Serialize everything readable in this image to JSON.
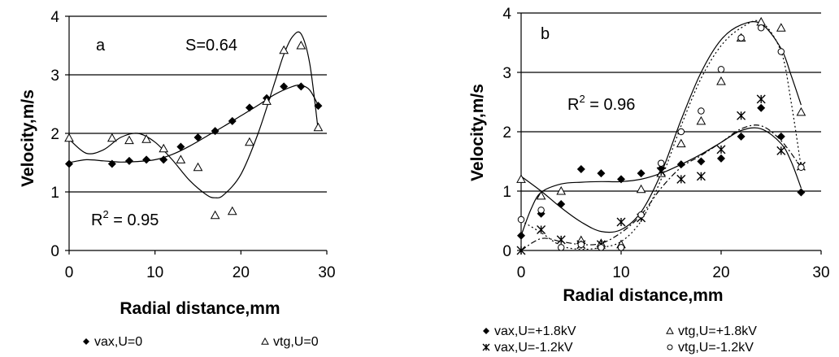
{
  "chart_data": [
    {
      "type": "scatter",
      "panel_label": "a",
      "annotation": "S=0.64",
      "r2_label": "R",
      "r2_sup": "2",
      "r2_value": " = 0.95",
      "xlabel": "Radial distance,mm",
      "ylabel": "Velocity,m/s",
      "xlim": [
        0,
        30
      ],
      "ylim": [
        0,
        4
      ],
      "xticks": [
        0,
        10,
        20,
        30
      ],
      "yticks": [
        0,
        1,
        2,
        3,
        4
      ],
      "grid": "horizontal",
      "legend_position": "bottom",
      "series": [
        {
          "name": "vax,U=0",
          "marker": "diamond",
          "x": [
            0,
            5,
            7,
            9,
            11,
            13,
            15,
            17,
            19,
            21,
            23,
            25,
            27,
            29
          ],
          "y": [
            1.48,
            1.48,
            1.53,
            1.55,
            1.55,
            1.77,
            1.93,
            2.04,
            2.21,
            2.44,
            2.6,
            2.8,
            2.8,
            2.47
          ],
          "trend": {
            "x": [
              0,
              2,
              4,
              6,
              8,
              10,
              12,
              14,
              16,
              18,
              20,
              22,
              24,
              26,
              27,
              28,
              29
            ],
            "y": [
              1.5,
              1.55,
              1.53,
              1.51,
              1.52,
              1.55,
              1.64,
              1.78,
              1.95,
              2.12,
              2.3,
              2.48,
              2.67,
              2.8,
              2.82,
              2.74,
              2.48
            ]
          }
        },
        {
          "name": "vtg,U=0",
          "marker": "triangle",
          "x": [
            0,
            5,
            7,
            9,
            11,
            13,
            15,
            17,
            19,
            21,
            23,
            25,
            27,
            29
          ],
          "y": [
            1.92,
            1.92,
            1.88,
            1.9,
            1.74,
            1.55,
            1.42,
            0.6,
            0.67,
            1.85,
            2.55,
            3.42,
            3.5,
            2.1
          ],
          "trend": {
            "x": [
              0,
              2,
              4,
              6,
              8,
              10,
              12,
              14,
              16,
              17,
              18,
              20,
              22,
              24,
              25,
              26,
              27,
              28,
              29
            ],
            "y": [
              1.9,
              1.66,
              1.72,
              1.93,
              2.0,
              1.85,
              1.55,
              1.2,
              0.95,
              0.9,
              0.95,
              1.3,
              2.0,
              2.9,
              3.35,
              3.65,
              3.7,
              3.2,
              2.05
            ]
          }
        }
      ]
    },
    {
      "type": "scatter",
      "panel_label": "b",
      "r2_label": "R",
      "r2_sup": "2",
      "r2_value": " = 0.96",
      "xlabel": "Radial distance,mm",
      "ylabel": "Velocity,m/s",
      "xlim": [
        0,
        30
      ],
      "ylim": [
        0,
        4
      ],
      "xticks": [
        0,
        10,
        20,
        30
      ],
      "yticks": [
        0,
        1,
        2,
        3,
        4
      ],
      "grid": "horizontal",
      "legend_position": "bottom",
      "series": [
        {
          "name": "vax,U=+1.8kV",
          "marker": "diamond",
          "x": [
            0,
            2,
            4,
            6,
            8,
            10,
            12,
            14,
            16,
            18,
            20,
            22,
            24,
            26,
            28
          ],
          "y": [
            0.25,
            0.62,
            0.78,
            1.37,
            1.3,
            1.2,
            1.3,
            1.38,
            1.45,
            1.5,
            1.55,
            1.92,
            2.4,
            1.92,
            0.98
          ],
          "trend_style": "solid",
          "trend": {
            "x": [
              0,
              1,
              2,
              4,
              6,
              8,
              10,
              12,
              14,
              16,
              18,
              20,
              22,
              24,
              26,
              27,
              28
            ],
            "y": [
              0.25,
              0.7,
              0.98,
              1.12,
              1.15,
              1.16,
              1.16,
              1.2,
              1.3,
              1.45,
              1.62,
              1.82,
              2.02,
              2.05,
              1.8,
              1.5,
              1.05
            ]
          }
        },
        {
          "name": "vtg,U=+1.8kV",
          "marker": "triangle",
          "x": [
            0,
            2,
            4,
            6,
            8,
            10,
            12,
            14,
            16,
            18,
            20,
            22,
            24,
            26,
            28
          ],
          "y": [
            1.2,
            0.92,
            1.0,
            0.17,
            0.12,
            0.1,
            1.03,
            1.3,
            1.8,
            2.18,
            2.85,
            3.58,
            3.85,
            3.75,
            2.33
          ],
          "trend_style": "solid",
          "trend": {
            "x": [
              0,
              2,
              4,
              6,
              8,
              10,
              12,
              14,
              16,
              18,
              20,
              22,
              24,
              26,
              27,
              28
            ],
            "y": [
              1.25,
              1.0,
              0.72,
              0.48,
              0.32,
              0.35,
              0.65,
              1.3,
              2.2,
              3.0,
              3.55,
              3.8,
              3.82,
              3.4,
              2.95,
              2.45
            ]
          }
        },
        {
          "name": "vax,U=-1.2kV",
          "marker": "star",
          "x": [
            0,
            2,
            4,
            6,
            8,
            10,
            12,
            14,
            16,
            18,
            20,
            22,
            24,
            26,
            28
          ],
          "y": [
            0.0,
            0.35,
            0.18,
            0.1,
            0.1,
            0.48,
            0.55,
            1.33,
            1.2,
            1.25,
            1.7,
            2.27,
            2.55,
            1.68,
            1.42
          ],
          "trend_style": "dashdot",
          "trend": {
            "x": [
              0,
              2,
              4,
              6,
              8,
              10,
              12,
              14,
              16,
              18,
              20,
              22,
              24,
              26,
              28
            ],
            "y": [
              0.0,
              0.2,
              0.15,
              0.1,
              0.12,
              0.3,
              0.6,
              1.05,
              1.4,
              1.6,
              1.82,
              2.05,
              2.1,
              1.85,
              1.4
            ]
          }
        },
        {
          "name": "vtg,U=-1.2kV",
          "marker": "circle",
          "x": [
            0,
            2,
            4,
            6,
            8,
            10,
            12,
            14,
            16,
            18,
            20,
            22,
            24,
            26,
            28
          ],
          "y": [
            0.52,
            0.68,
            0.05,
            0.1,
            0.05,
            0.05,
            0.6,
            1.47,
            2.0,
            2.35,
            3.05,
            3.58,
            3.75,
            3.35,
            1.4
          ],
          "trend_style": "dotted",
          "trend": {
            "x": [
              0,
              2,
              4,
              6,
              8,
              10,
              12,
              14,
              16,
              18,
              20,
              22,
              24,
              26,
              27,
              28
            ],
            "y": [
              0.5,
              0.3,
              0.08,
              0.02,
              0.05,
              0.15,
              0.5,
              1.2,
              2.1,
              2.9,
              3.45,
              3.75,
              3.85,
              3.35,
              2.5,
              1.4
            ]
          }
        }
      ]
    }
  ]
}
